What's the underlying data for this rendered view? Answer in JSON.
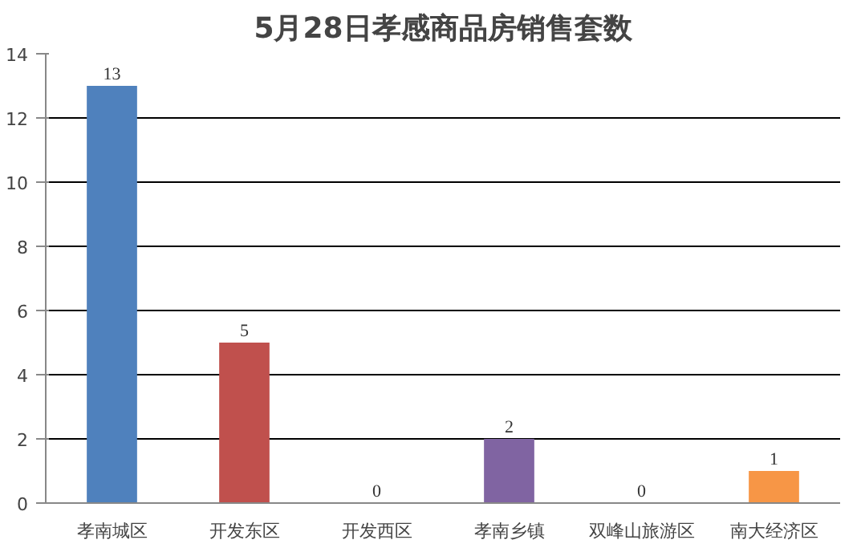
{
  "chart_data": {
    "type": "bar",
    "title": "5月28日孝感商品房销售套数",
    "categories": [
      "孝南城区",
      "开发东区",
      "开发西区",
      "孝南乡镇",
      "双峰山旅游区",
      "南大经济区"
    ],
    "values": [
      13,
      5,
      0,
      2,
      0,
      1
    ],
    "colors": [
      "#4f81bd",
      "#c0504d",
      "#9bbb59",
      "#8064a2",
      "#4bacc6",
      "#f79646"
    ],
    "ylim": [
      0,
      14
    ],
    "yticks": [
      0,
      2,
      4,
      6,
      8,
      10,
      12,
      14
    ],
    "grid": "y",
    "data_labels": true
  }
}
